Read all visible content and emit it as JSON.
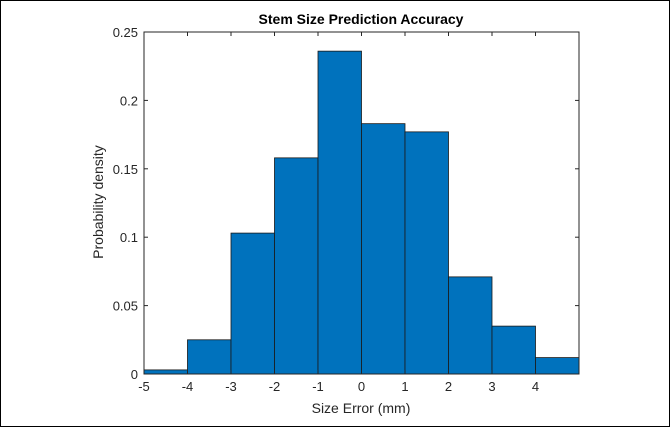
{
  "chart_data": {
    "type": "bar",
    "title": "Stem Size Prediction Accuracy",
    "xlabel": "Size Error (mm)",
    "ylabel": "Probability density",
    "bin_edges": [
      -5,
      -4,
      -3,
      -2,
      -1,
      0,
      1,
      2,
      3,
      4,
      5
    ],
    "values": [
      0.003,
      0.025,
      0.103,
      0.158,
      0.236,
      0.183,
      0.177,
      0.071,
      0.035,
      0.012
    ],
    "xlim": [
      -5,
      5
    ],
    "ylim": [
      0,
      0.25
    ],
    "xticks": [
      -5,
      -4,
      -3,
      -2,
      -1,
      0,
      1,
      2,
      3,
      4
    ],
    "xtick_labels": [
      "-5",
      "-4",
      "-3",
      "-2",
      "-1",
      "0",
      "1",
      "2",
      "3",
      "4"
    ],
    "yticks": [
      0,
      0.05,
      0.1,
      0.15,
      0.2,
      0.25
    ],
    "ytick_labels": [
      "0",
      "0.05",
      "0.1",
      "0.15",
      "0.2",
      "0.25"
    ],
    "bar_color": "#0072BD",
    "edge_color": "#1a1a1a",
    "grid": false,
    "legend": false
  }
}
